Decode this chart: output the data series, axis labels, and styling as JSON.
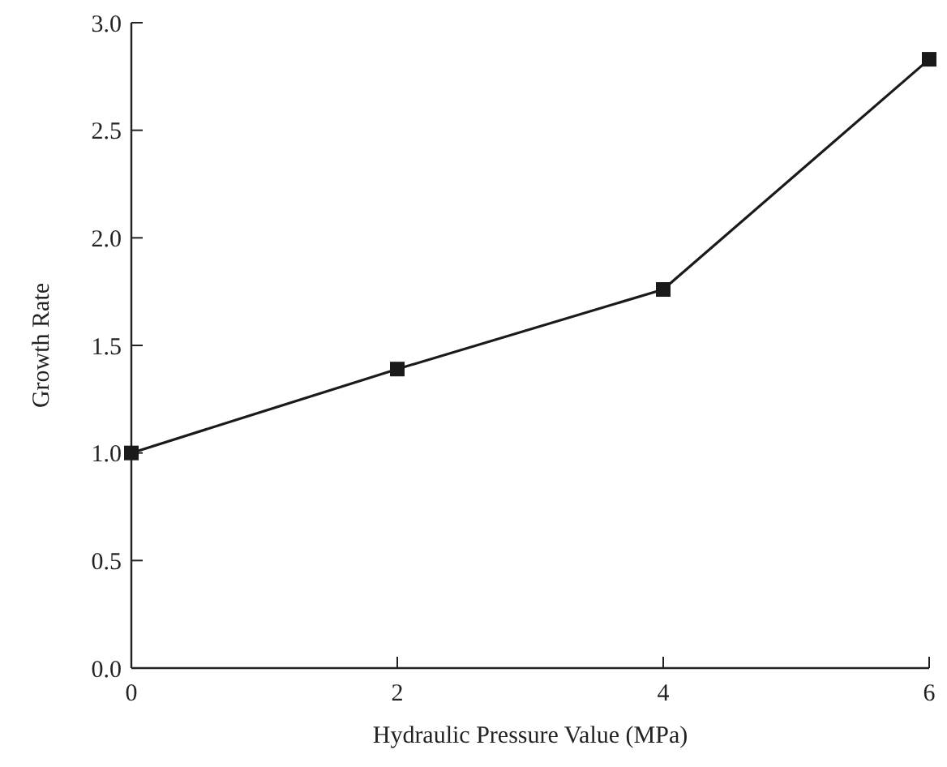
{
  "chart_data": {
    "type": "line",
    "xlabel": "Hydraulic Pressure Value (MPa)",
    "ylabel": "Growth Rate",
    "x": [
      0,
      2,
      4,
      6
    ],
    "series": [
      {
        "color": "#1a1a1a",
        "values": [
          1.0,
          1.39,
          1.76,
          2.83
        ]
      }
    ],
    "xlim": [
      0,
      6
    ],
    "xticks": [
      0,
      2,
      4,
      6
    ],
    "ylim": [
      0,
      3
    ],
    "yticks": [
      {
        "value": 0,
        "label": "0.0"
      },
      {
        "value": 0.5,
        "label": "0.5"
      },
      {
        "value": 1,
        "label": "1.0"
      },
      {
        "value": 1.5,
        "label": "1.5"
      },
      {
        "value": 2,
        "label": "2.0"
      },
      {
        "value": 2.5,
        "label": "2.5"
      },
      {
        "value": 3,
        "label": "3.0"
      }
    ],
    "grid": false,
    "marker": "square",
    "line_style": "solid"
  }
}
